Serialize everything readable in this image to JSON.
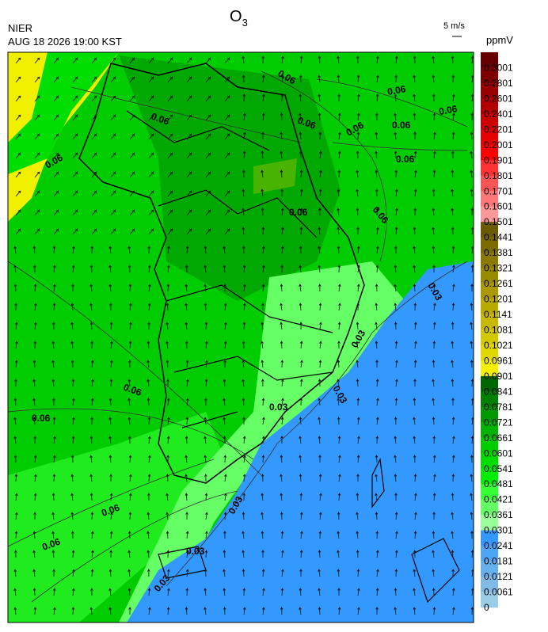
{
  "header": {
    "title": "O",
    "title_sub": "3",
    "agency": "NIER",
    "datetime": "AUG 18 2026 19:00 KST"
  },
  "wind_scale": "5 m/s",
  "colorbar": {
    "unit": "ppmV",
    "labels": [
      "0.3001",
      "0.2801",
      "0.2601",
      "0.2401",
      "0.2201",
      "0.2001",
      "0.1901",
      "0.1801",
      "0.1701",
      "0.1601",
      "0.1501",
      "0.1441",
      "0.1381",
      "0.1321",
      "0.1261",
      "0.1201",
      "0.1141",
      "0.1081",
      "0.1021",
      "0.0961",
      "0.0901",
      "0.0841",
      "0.0781",
      "0.0721",
      "0.0661",
      "0.0601",
      "0.0541",
      "0.0481",
      "0.0421",
      "0.0361",
      "0.0301",
      "0.0241",
      "0.0181",
      "0.0121",
      "0.0061",
      "0"
    ],
    "colors": [
      "#660000",
      "#7f0000",
      "#990000",
      "#b30000",
      "#cc0000",
      "#e60000",
      "#ff0000",
      "#ff3333",
      "#ff5555",
      "#ff7777",
      "#ff9999",
      "#6b5a00",
      "#7a6a00",
      "#8a7a00",
      "#9a8a00",
      "#aa9a00",
      "#baaa00",
      "#c8b800",
      "#d4c800",
      "#e0d800",
      "#f5f000",
      "#006600",
      "#008000",
      "#009900",
      "#00b300",
      "#00cc00",
      "#00dd00",
      "#00ee00",
      "#33ff33",
      "#66ff66",
      "#99ff99",
      "#3399ff",
      "#4da6f5",
      "#66b0ee",
      "#80bbe8",
      "#99cce6"
    ]
  },
  "contour_labels": [
    "0.06",
    "0.06",
    "0.06",
    "0.06",
    "0.06",
    "0.06",
    "0.06",
    "0.06",
    "0.06",
    "0.06",
    "0.06",
    "0.06",
    "0.06",
    "0.06",
    "0.06",
    "0.03",
    "0.03",
    "0.03",
    "0.03",
    "0.03",
    "0.03",
    "0.03"
  ]
}
